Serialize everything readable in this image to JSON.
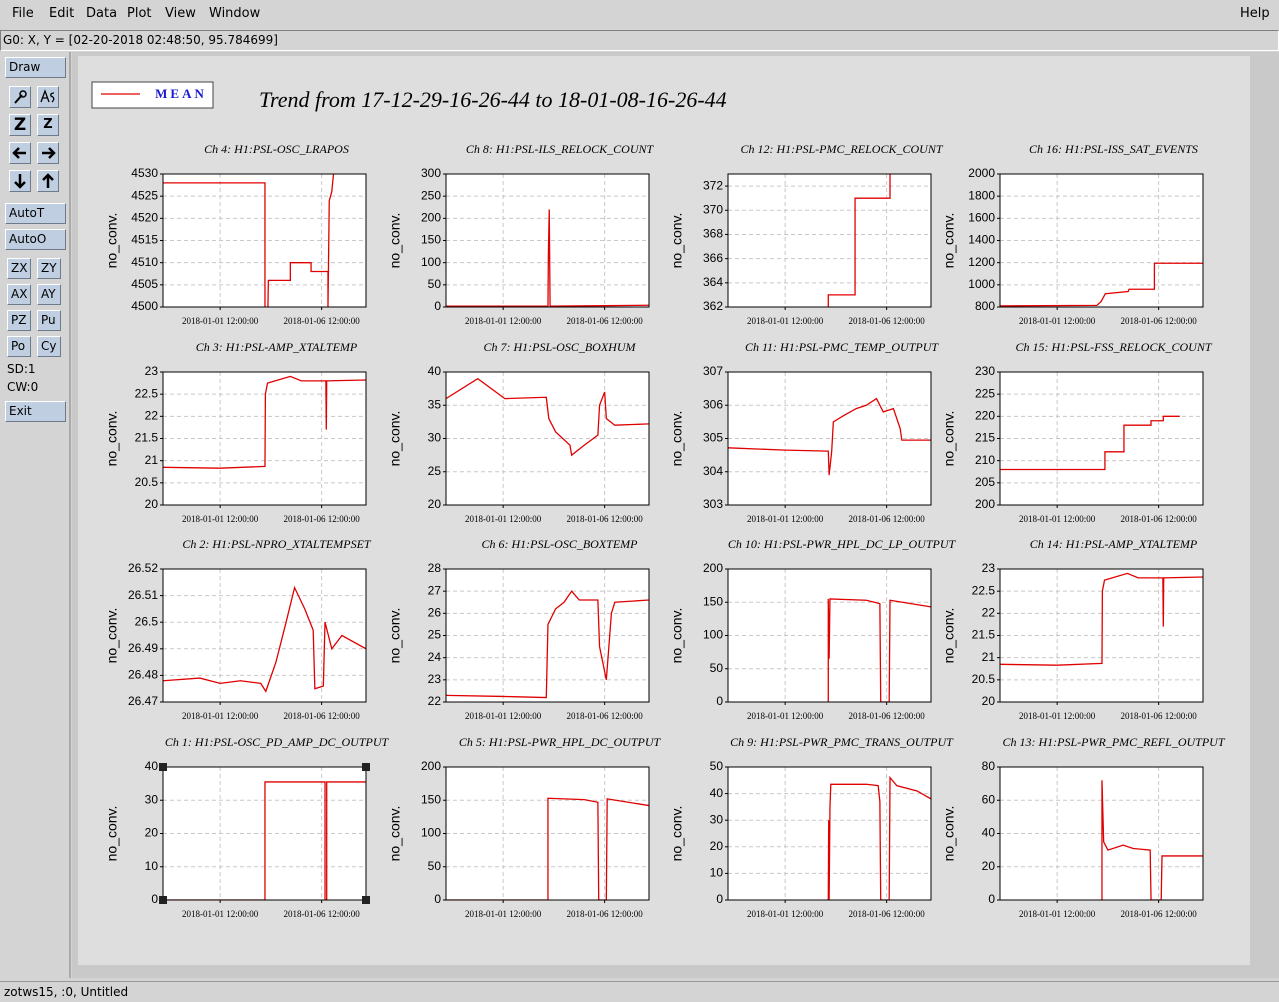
{
  "menu": {
    "items": [
      "File",
      "Edit",
      "Data",
      "Plot",
      "View",
      "Window"
    ],
    "help": "Help"
  },
  "coordinates": "G0: X, Y = [02-20-2018 02:48:50, 95.784699]",
  "toolbar": {
    "draw": "Draw",
    "zoom": [
      "Z",
      "Z"
    ],
    "auto": [
      "AutoT",
      "AutoO"
    ],
    "pairs": [
      [
        "ZX",
        "ZY"
      ],
      [
        "AX",
        "AY"
      ],
      [
        "PZ",
        "Pu"
      ],
      [
        "Po",
        "Cy"
      ]
    ],
    "indicators": [
      "SD:1",
      "CW:0"
    ],
    "exit": "Exit"
  },
  "status_bar": "zotws15, :0, Untitled",
  "legend": {
    "label": "MEAN",
    "color": "#e00000"
  },
  "title": "Trend from 17-12-29-16-26-44 to 18-01-08-16-26-44",
  "chart_data": [
    {
      "type": "line",
      "title": "Ch 4: H1:PSL-OSC_LRAPOS",
      "y_label": "no_conv.",
      "color": "#e00000",
      "grid": true,
      "x": [
        "2017-12-29 16:26:44",
        "2018-01-03 17:00:00",
        "2018-01-03 17:00:00",
        "2018-01-03 19:00:00",
        "2018-01-03 20:30:00",
        "2018-01-03 21:00:00",
        "2018-01-04 23:00:00",
        "2018-01-04 23:00:00",
        "2018-01-05 23:30:00",
        "2018-01-05 23:30:00",
        "2018-01-06 19:30:00",
        "2018-01-06 19:30:00",
        "2018-01-06 20:00:00",
        "2018-01-06 21:00:00",
        "2018-01-07 00:00:00",
        "2018-01-07 02:00:00"
      ],
      "values": [
        4528,
        4528,
        4500,
        null,
        4500,
        4506,
        4506,
        4510,
        4510,
        4508,
        4508,
        4500,
        4508,
        4524,
        4526,
        4530
      ],
      "xlim": [
        "2017-12-29 16:26:44",
        "2018-01-08 16:26:44"
      ],
      "xticks": [
        "2018-01-01 12:00:00",
        "2018-01-06 12:00:00"
      ],
      "ylim": [
        4500,
        4530
      ],
      "yticks": [
        4500,
        4505,
        4510,
        4515,
        4520,
        4525,
        4530
      ]
    },
    {
      "type": "line",
      "title": "Ch 8: H1:PSL-ILS_RELOCK_COUNT",
      "y_label": "no_conv.",
      "color": "#e00000",
      "grid": true,
      "x": [
        "2017-12-29 16:26:44",
        "2018-01-03 16:00:00",
        "2018-01-03 17:00:00",
        "2018-01-03 17:30:00",
        "2018-01-03 18:30:00",
        "2018-01-03 19:30:00",
        "2018-01-06 12:00:00",
        "2018-01-08 16:26:44"
      ],
      "values": [
        2,
        2,
        0,
        120,
        220,
        2,
        3,
        4
      ],
      "xlim": [
        "2017-12-29 16:26:44",
        "2018-01-08 16:26:44"
      ],
      "xticks": [
        "2018-01-01 12:00:00",
        "2018-01-06 12:00:00"
      ],
      "ylim": [
        0,
        300
      ],
      "yticks": [
        0,
        50,
        100,
        150,
        200,
        250,
        300
      ]
    },
    {
      "type": "line",
      "title": "Ch 12: H1:PSL-PMC_RELOCK_COUNT",
      "y_label": "no_conv.",
      "color": "#e00000",
      "grid": true,
      "x": [
        "2018-01-03 15:00:00",
        "2018-01-03 15:00:00",
        "2018-01-04 22:40:00",
        "2018-01-04 22:40:00",
        "2018-01-06 16:00:00",
        "2018-01-06 16:00:00"
      ],
      "values": [
        362,
        363,
        363,
        371,
        371,
        373
      ],
      "xlim": [
        "2017-12-29 16:26:44",
        "2018-01-08 16:26:44"
      ],
      "xticks": [
        "2018-01-01 12:00:00",
        "2018-01-06 12:00:00"
      ],
      "ylim": [
        362,
        373
      ],
      "yticks": [
        362,
        364,
        366,
        368,
        370,
        372
      ]
    },
    {
      "type": "line",
      "title": "Ch 16: H1:PSL-ISS_SAT_EVENTS",
      "y_label": "no_conv.",
      "color": "#e00000",
      "grid": true,
      "x": [
        "2017-12-29 16:26:44",
        "2018-01-03 11:00:00",
        "2018-01-03 16:00:00",
        "2018-01-03 21:00:00",
        "2018-01-05 00:00:00",
        "2018-01-05 01:00:00",
        "2018-01-06 07:00:00",
        "2018-01-06 07:00:00",
        "2018-01-08 16:26:44"
      ],
      "values": [
        810,
        815,
        850,
        920,
        940,
        960,
        960,
        1195,
        1195
      ],
      "xlim": [
        "2017-12-29 16:26:44",
        "2018-01-08 16:26:44"
      ],
      "xticks": [
        "2018-01-01 12:00:00",
        "2018-01-06 12:00:00"
      ],
      "ylim": [
        800,
        2000
      ],
      "yticks": [
        800,
        1000,
        1200,
        1400,
        1600,
        1800,
        2000
      ]
    },
    {
      "type": "line",
      "title": "Ch 3: H1:PSL-AMP_XTALTEMP",
      "y_label": "no_conv.",
      "color": "#e00000",
      "grid": true,
      "x": [
        "2017-12-29 16:26:44",
        "2018-01-01 12:00:00",
        "2018-01-03 17:00:00",
        "2018-01-03 17:30:00",
        "2018-01-03 20:00:00",
        "2018-01-04 23:00:00",
        "2018-01-05 12:00:00",
        "2018-01-06 17:00:00",
        "2018-01-06 17:30:00",
        "2018-01-06 18:00:00",
        "2018-01-08 16:26:44"
      ],
      "values": [
        20.85,
        20.83,
        20.87,
        22.5,
        22.75,
        22.9,
        22.8,
        22.8,
        21.7,
        22.8,
        22.82
      ],
      "xlim": [
        "2017-12-29 16:26:44",
        "2018-01-08 16:26:44"
      ],
      "xticks": [
        "2018-01-01 12:00:00",
        "2018-01-06 12:00:00"
      ],
      "ylim": [
        20,
        23
      ],
      "yticks": [
        20,
        20.5,
        21,
        21.5,
        22,
        22.5,
        23
      ]
    },
    {
      "type": "line",
      "title": "Ch 7: H1:PSL-OSC_BOXHUM",
      "y_label": "no_conv.",
      "color": "#e00000",
      "grid": true,
      "x": [
        "2017-12-29 16:26:44",
        "2017-12-31 06:00:00",
        "2018-01-01 14:00:00",
        "2018-01-03 15:00:00",
        "2018-01-03 18:00:00",
        "2018-01-04 02:00:00",
        "2018-01-04 19:00:00",
        "2018-01-04 21:00:00",
        "2018-01-05 12:00:00",
        "2018-01-06 04:00:00",
        "2018-01-06 06:00:00",
        "2018-01-06 12:00:00",
        "2018-01-06 14:00:00",
        "2018-01-07 00:00:00",
        "2018-01-08 16:26:44"
      ],
      "values": [
        36,
        39,
        36,
        36.2,
        33,
        31,
        29,
        27.5,
        29,
        30.5,
        35,
        37,
        33,
        32,
        32.2
      ],
      "xlim": [
        "2017-12-29 16:26:44",
        "2018-01-08 16:26:44"
      ],
      "xticks": [
        "2018-01-01 12:00:00",
        "2018-01-06 12:00:00"
      ],
      "ylim": [
        20,
        40
      ],
      "yticks": [
        20,
        25,
        30,
        35,
        40
      ]
    },
    {
      "type": "line",
      "title": "Ch 11: H1:PSL-PMC_TEMP_OUTPUT",
      "y_label": "no_conv.",
      "color": "#e00000",
      "grid": true,
      "x": [
        "2017-12-29 16:26:44",
        "2018-01-01 12:00:00",
        "2018-01-03 15:00:00",
        "2018-01-03 16:00:00",
        "2018-01-03 19:00:00",
        "2018-01-03 21:00:00",
        "2018-01-04 10:00:00",
        "2018-01-05 00:00:00",
        "2018-01-05 12:00:00",
        "2018-01-06 00:00:00",
        "2018-01-06 08:00:00",
        "2018-01-06 20:00:00",
        "2018-01-07 04:00:00",
        "2018-01-07 06:00:00",
        "2018-01-08 16:26:44"
      ],
      "values": [
        304.72,
        304.65,
        304.62,
        303.9,
        304.6,
        305.5,
        305.7,
        305.9,
        306,
        306.2,
        305.8,
        305.9,
        305.3,
        304.95,
        304.95
      ],
      "xlim": [
        "2017-12-29 16:26:44",
        "2018-01-08 16:26:44"
      ],
      "xticks": [
        "2018-01-01 12:00:00",
        "2018-01-06 12:00:00"
      ],
      "ylim": [
        303,
        307
      ],
      "yticks": [
        303,
        304,
        305,
        306,
        307
      ]
    },
    {
      "type": "line",
      "title": "Ch 15: H1:PSL-FSS_RELOCK_COUNT",
      "y_label": "no_conv.",
      "color": "#e00000",
      "grid": true,
      "x": [
        "2017-12-29 16:26:44",
        "2018-01-03 20:30:00",
        "2018-01-03 20:30:00",
        "2018-01-04 19:00:00",
        "2018-01-04 19:00:00",
        "2018-01-06 03:00:00",
        "2018-01-06 03:00:00",
        "2018-01-06 17:30:00",
        "2018-01-06 17:30:00",
        "2018-01-07 13:00:00"
      ],
      "values": [
        208,
        208,
        212,
        212,
        218,
        218,
        219,
        219,
        220,
        220
      ],
      "xlim": [
        "2017-12-29 16:26:44",
        "2018-01-08 16:26:44"
      ],
      "xticks": [
        "2018-01-01 12:00:00",
        "2018-01-06 12:00:00"
      ],
      "ylim": [
        200,
        230
      ],
      "yticks": [
        200,
        205,
        210,
        215,
        220,
        225,
        230
      ]
    },
    {
      "type": "line",
      "title": "Ch 2: H1:PSL-NPRO_XTALTEMPSET",
      "y_label": "no_conv.",
      "color": "#e00000",
      "grid": true,
      "x": [
        "2017-12-29 16:26:44",
        "2017-12-31 12:00:00",
        "2018-01-01 12:00:00",
        "2018-01-02 12:00:00",
        "2018-01-03 12:00:00",
        "2018-01-03 18:00:00",
        "2018-01-04 06:00:00",
        "2018-01-04 18:00:00",
        "2018-01-05 04:00:00",
        "2018-01-05 16:00:00",
        "2018-01-06 02:00:00",
        "2018-01-06 04:00:00",
        "2018-01-06 14:00:00",
        "2018-01-06 16:00:00",
        "2018-01-07 00:00:00",
        "2018-01-07 12:00:00",
        "2018-01-08 16:26:44"
      ],
      "values": [
        26.478,
        26.479,
        26.477,
        26.478,
        26.477,
        26.474,
        26.485,
        26.5,
        26.513,
        26.505,
        26.497,
        26.475,
        26.476,
        26.5,
        26.49,
        26.495,
        26.49
      ],
      "xlim": [
        "2017-12-29 16:26:44",
        "2018-01-08 16:26:44"
      ],
      "xticks": [
        "2018-01-01 12:00:00",
        "2018-01-06 12:00:00"
      ],
      "ylim": [
        26.47,
        26.52
      ],
      "yticks": [
        26.47,
        26.48,
        26.49,
        26.5,
        26.51,
        26.52
      ]
    },
    {
      "type": "line",
      "title": "Ch 6: H1:PSL-OSC_BOXTEMP",
      "y_label": "no_conv.",
      "color": "#e00000",
      "grid": true,
      "x": [
        "2017-12-29 16:26:44",
        "2018-01-01 12:00:00",
        "2018-01-03 15:00:00",
        "2018-01-03 17:00:00",
        "2018-01-04 02:00:00",
        "2018-01-04 12:00:00",
        "2018-01-04 21:00:00",
        "2018-01-05 06:00:00",
        "2018-01-06 04:00:00",
        "2018-01-06 06:00:00",
        "2018-01-06 14:00:00",
        "2018-01-06 20:00:00",
        "2018-01-07 00:00:00",
        "2018-01-08 16:26:44"
      ],
      "values": [
        22.3,
        22.25,
        22.2,
        25.5,
        26.2,
        26.5,
        27,
        26.6,
        26.6,
        24.5,
        23,
        26,
        26.5,
        26.6
      ],
      "xlim": [
        "2017-12-29 16:26:44",
        "2018-01-08 16:26:44"
      ],
      "xticks": [
        "2018-01-01 12:00:00",
        "2018-01-06 12:00:00"
      ],
      "ylim": [
        22,
        28
      ],
      "yticks": [
        22,
        23,
        24,
        25,
        26,
        27,
        28
      ]
    },
    {
      "type": "line",
      "title": "Ch 10: H1:PSL-PWR_HPL_DC_LP_OUTPUT",
      "y_label": "no_conv.",
      "color": "#e00000",
      "grid": true,
      "x": [
        "2018-01-03 15:00:00",
        "2018-01-03 15:00:00",
        "2018-01-03 16:00:00",
        "2018-01-03 17:00:00",
        "2018-01-05 12:00:00",
        "2018-01-06 04:00:00",
        "2018-01-06 05:00:00",
        "2018-01-06 15:00:00",
        "2018-01-06 16:00:00",
        "2018-01-08 16:26:44"
      ],
      "values": [
        0,
        155,
        65,
        155,
        153,
        148,
        0,
        0,
        153,
        143
      ],
      "xlim": [
        "2017-12-29 16:26:44",
        "2018-01-08 16:26:44"
      ],
      "xticks": [
        "2018-01-01 12:00:00",
        "2018-01-06 12:00:00"
      ],
      "ylim": [
        0,
        200
      ],
      "yticks": [
        0,
        50,
        100,
        150,
        200
      ]
    },
    {
      "type": "line",
      "title": "Ch 14: H1:PSL-AMP_XTALTEMP",
      "y_label": "no_conv.",
      "color": "#e00000",
      "grid": true,
      "x": [
        "2017-12-29 16:26:44",
        "2018-01-01 12:00:00",
        "2018-01-03 17:00:00",
        "2018-01-03 17:30:00",
        "2018-01-03 20:00:00",
        "2018-01-04 23:00:00",
        "2018-01-05 12:00:00",
        "2018-01-06 17:00:00",
        "2018-01-06 17:30:00",
        "2018-01-06 18:00:00",
        "2018-01-08 16:26:44"
      ],
      "values": [
        20.85,
        20.83,
        20.87,
        22.5,
        22.75,
        22.9,
        22.8,
        22.8,
        21.7,
        22.8,
        22.82
      ],
      "xlim": [
        "2017-12-29 16:26:44",
        "2018-01-08 16:26:44"
      ],
      "xticks": [
        "2018-01-01 12:00:00",
        "2018-01-06 12:00:00"
      ],
      "ylim": [
        20,
        23
      ],
      "yticks": [
        20,
        20.5,
        21,
        21.5,
        22,
        22.5,
        23
      ]
    },
    {
      "type": "line",
      "title": "Ch 1: H1:PSL-OSC_PD_AMP_DC_OUTPUT",
      "y_label": "no_conv.",
      "color": "#e00000",
      "grid": true,
      "x": [
        "2017-12-29 16:26:44",
        "2018-01-03 17:00:00",
        "2018-01-03 17:00:00",
        "2018-01-06 16:00:00",
        "2018-01-06 16:00:00",
        "2018-01-06 18:00:00",
        "2018-01-06 18:00:00",
        "2018-01-08 16:26:44"
      ],
      "values": [
        0,
        0,
        35.5,
        35.5,
        0,
        0,
        35.5,
        35.5
      ],
      "xlim": [
        "2017-12-29 16:26:44",
        "2018-01-08 16:26:44"
      ],
      "xticks": [
        "2018-01-01 12:00:00",
        "2018-01-06 12:00:00"
      ],
      "ylim": [
        0,
        40
      ],
      "yticks": [
        0,
        10,
        20,
        30,
        40
      ]
    },
    {
      "type": "line",
      "title": "Ch 5: H1:PSL-PWR_HPL_DC_OUTPUT",
      "y_label": "no_conv.",
      "color": "#e00000",
      "grid": true,
      "x": [
        "2017-12-29 16:26:44",
        "2018-01-03 17:00:00",
        "2018-01-03 17:00:00",
        "2018-01-05 12:00:00",
        "2018-01-06 04:00:00",
        "2018-01-06 05:00:00",
        "2018-01-06 14:00:00",
        "2018-01-06 15:00:00",
        "2018-01-08 16:26:44"
      ],
      "values": [
        0,
        0,
        153,
        151,
        147,
        0,
        0,
        152,
        142
      ],
      "xlim": [
        "2017-12-29 16:26:44",
        "2018-01-08 16:26:44"
      ],
      "xticks": [
        "2018-01-01 12:00:00",
        "2018-01-06 12:00:00"
      ],
      "ylim": [
        0,
        200
      ],
      "yticks": [
        0,
        50,
        100,
        150,
        200
      ]
    },
    {
      "type": "line",
      "title": "Ch 9: H1:PSL-PWR_PMC_TRANS_OUTPUT",
      "y_label": "no_conv.",
      "color": "#e00000",
      "grid": true,
      "x": [
        "2018-01-03 15:00:00",
        "2018-01-03 15:30:00",
        "2018-01-03 16:00:00",
        "2018-01-03 17:00:00",
        "2018-01-03 18:00:00",
        "2018-01-05 12:00:00",
        "2018-01-06 02:00:00",
        "2018-01-06 04:00:00",
        "2018-01-06 05:00:00",
        "2018-01-06 15:00:00",
        "2018-01-06 16:00:00",
        "2018-01-07 00:00:00",
        "2018-01-08 00:00:00",
        "2018-01-08 16:26:44"
      ],
      "values": [
        0,
        30,
        0,
        35,
        43.5,
        43.5,
        43,
        37,
        0,
        0,
        46,
        43,
        41,
        38
      ],
      "xlim": [
        "2017-12-29 16:26:44",
        "2018-01-08 16:26:44"
      ],
      "xticks": [
        "2018-01-01 12:00:00",
        "2018-01-06 12:00:00"
      ],
      "ylim": [
        0,
        50
      ],
      "yticks": [
        0,
        10,
        20,
        30,
        40,
        50
      ]
    },
    {
      "type": "line",
      "title": "Ch 13: H1:PSL-PWR_PMC_REFL_OUTPUT",
      "y_label": "no_conv.",
      "color": "#e00000",
      "grid": true,
      "x": [
        "2018-01-03 17:00:00",
        "2018-01-03 17:00:00",
        "2018-01-03 19:00:00",
        "2018-01-04 00:00:00",
        "2018-01-04 18:00:00",
        "2018-01-05 06:00:00",
        "2018-01-06 02:00:00",
        "2018-01-06 03:00:00",
        "2018-01-06 15:00:00",
        "2018-01-06 16:00:00",
        "2018-01-08 16:26:44"
      ],
      "values": [
        0,
        72,
        35,
        30,
        33,
        31,
        30,
        0,
        0,
        26.5,
        26.5
      ],
      "xlim": [
        "2017-12-29 16:26:44",
        "2018-01-08 16:26:44"
      ],
      "xticks": [
        "2018-01-01 12:00:00",
        "2018-01-06 12:00:00"
      ],
      "ylim": [
        0,
        80
      ],
      "yticks": [
        0,
        20,
        40,
        60,
        80
      ]
    }
  ]
}
